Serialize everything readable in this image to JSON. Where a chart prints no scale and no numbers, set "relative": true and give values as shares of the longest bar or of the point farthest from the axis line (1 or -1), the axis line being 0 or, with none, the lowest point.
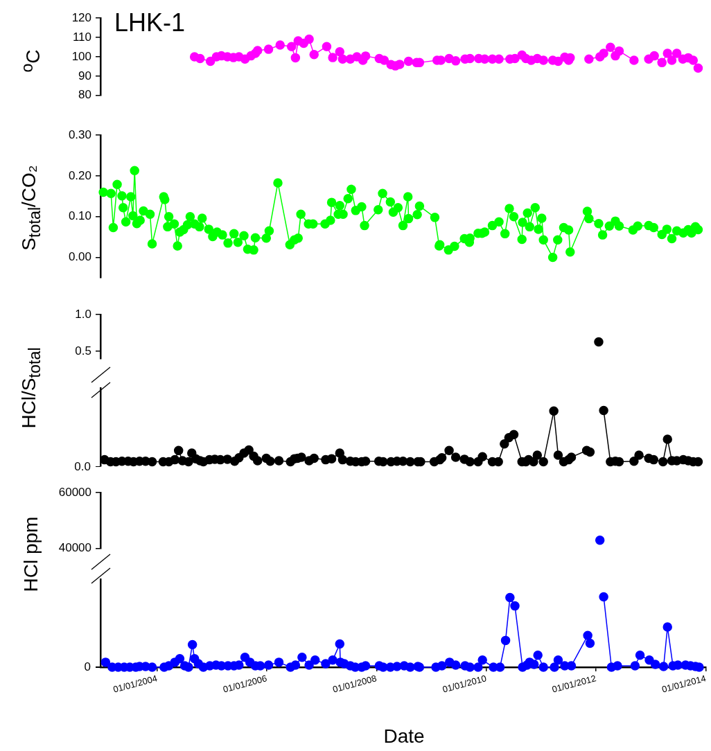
{
  "chart_data": [
    {
      "type": "line",
      "ylabel": "$^{o}$C",
      "annotations": [
        "LHK-1"
      ],
      "color": "#ff00ff",
      "marker": "circle",
      "line_style": "solid",
      "tick_labels": "y",
      "xlim": [
        "2002-12-20",
        "2014-01-01"
      ],
      "ylim": [
        80,
        120
      ],
      "yticks": [
        80,
        90,
        100,
        110,
        120
      ],
      "x": [
        "2004-09-06",
        "2004-10-13",
        "2004-12-21",
        "2005-01-30",
        "2005-03-04",
        "2005-04-13",
        "2005-05-23",
        "2005-06-29",
        "2005-08-08",
        "2005-09-17",
        "2005-10-16",
        "2005-10-31",
        "2006-01-12",
        "2006-03-30",
        "2006-06-14",
        "2006-07-10",
        "2006-07-28",
        "2006-09-03",
        "2006-10-09",
        "2006-11-11",
        "2007-02-03",
        "2007-03-15",
        "2007-05-01",
        "2007-05-20",
        "2007-07-10",
        "2007-08-23",
        "2007-10-02",
        "2007-10-20",
        "2008-01-19",
        "2008-02-21",
        "2008-04-06",
        "2008-05-05",
        "2008-06-03",
        "2008-08-01",
        "2008-09-24",
        "2008-10-13",
        "2009-02-07",
        "2009-03-04",
        "2009-04-28",
        "2009-06-11",
        "2009-08-12",
        "2009-09-14",
        "2009-11-11",
        "2009-12-21",
        "2010-02-10",
        "2010-03-26",
        "2010-06-07",
        "2010-07-10",
        "2010-08-26",
        "2010-09-21",
        "2010-10-27",
        "2010-12-06",
        "2011-01-16",
        "2011-03-19",
        "2011-04-24",
        "2011-06-07",
        "2011-07-03",
        "2011-07-13",
        "2011-09-14",
        "2011-11-15",
        "2012-01-27",
        "2012-02-21",
        "2012-04-06",
        "2012-05-09",
        "2012-06-03",
        "2012-09-10",
        "2012-10-20",
        "2012-12-17",
        "2013-01-23",
        "2013-03-15",
        "2013-04-21",
        "2013-05-20",
        "2013-06-22",
        "2013-08-01",
        "2013-09-06",
        "2013-10-09",
        "2013-11-11"
      ],
      "values": [
        100,
        99.1,
        97.7,
        100,
        100.5,
        100,
        99.6,
        100,
        98.8,
        100.5,
        101.8,
        103.2,
        103.9,
        106.1,
        105.3,
        99.5,
        108.2,
        107,
        109.1,
        101.2,
        105.3,
        99.6,
        102.6,
        98.8,
        98.8,
        100,
        98.2,
        100.4,
        99.1,
        98.2,
        96,
        95.3,
        96.1,
        97.7,
        97,
        97,
        98.2,
        98.2,
        99.1,
        97.9,
        98.8,
        99.1,
        99.1,
        98.8,
        98.8,
        98.8,
        98.8,
        99.1,
        100.9,
        99.1,
        98.2,
        99.1,
        98.2,
        98.2,
        97.7,
        99.8,
        98.2,
        99.5,
        null,
        98.8,
        100,
        101.8,
        104.9,
        100.5,
        103,
        98.2,
        null,
        98.8,
        100.5,
        97,
        101.8,
        98.2,
        101.8,
        98.8,
        99.5,
        98.2,
        94.2
      ]
    },
    {
      "type": "line",
      "ylabel": "S$_{total}$/CO₂",
      "color": "#00ff00",
      "marker": "circle",
      "line_style": "solid",
      "tick_labels": "y",
      "xlim": [
        "2002-12-20",
        "2014-01-01"
      ],
      "ylim": [
        -0.05,
        0.3
      ],
      "yticks": [
        {
          "value": 0,
          "label": "0.00"
        },
        {
          "value": 0.1,
          "label": "0.10"
        },
        {
          "value": 0.2,
          "label": "0.20"
        },
        {
          "value": 0.3,
          "label": "0.30"
        }
      ],
      "x": [
        "2003-01-08",
        "2003-02-28",
        "2003-03-15",
        "2003-04-10",
        "2003-05-12",
        "2003-05-20",
        "2003-06-07",
        "2003-07-10",
        "2003-07-24",
        "2003-08-04",
        "2003-08-19",
        "2003-09-10",
        "2003-10-02",
        "2003-11-15",
        "2003-11-29",
        "2004-02-14",
        "2004-02-21",
        "2004-03-11",
        "2004-03-19",
        "2004-04-24",
        "2004-05-16",
        "2004-05-31",
        "2004-06-25",
        "2004-07-21",
        "2004-08-08",
        "2004-09-06",
        "2004-10-09",
        "2004-10-27",
        "2004-12-10",
        "2005-01-05",
        "2005-02-03",
        "2005-03-11",
        "2005-04-17",
        "2005-05-27",
        "2005-06-22",
        "2005-08-01",
        "2005-08-26",
        "2005-10-05",
        "2005-10-16",
        "2005-12-28",
        "2006-01-16",
        "2006-03-15",
        "2006-06-03",
        "2006-07-03",
        "2006-07-28",
        "2006-08-15",
        "2006-10-05",
        "2006-11-04",
        "2007-01-23",
        "2007-02-28",
        "2007-03-08",
        "2007-04-21",
        "2007-05-01",
        "2007-05-23",
        "2007-06-25",
        "2007-07-17",
        "2007-08-15",
        "2007-09-24",
        "2007-10-13",
        "2008-01-12",
        "2008-02-10",
        "2008-04-02",
        "2008-04-21",
        "2008-05-23",
        "2008-06-25",
        "2008-07-28",
        "2008-08-01",
        "2008-09-28",
        "2008-10-13",
        "2009-01-23",
        "2009-02-21",
        "2009-02-25",
        "2009-04-24",
        "2009-06-03",
        "2009-08-08",
        "2009-09-10",
        "2009-09-14",
        "2009-11-07",
        "2009-12-03",
        "2009-12-21",
        "2010-02-10",
        "2010-03-26",
        "2010-05-05",
        "2010-06-03",
        "2010-07-03",
        "2010-08-26",
        "2010-08-30",
        "2010-10-02",
        "2010-10-16",
        "2010-11-22",
        "2010-12-14",
        "2011-01-05",
        "2011-01-16",
        "2011-03-19",
        "2011-04-21",
        "2011-05-31",
        "2011-07-03",
        "2011-07-13",
        "2011-11-04",
        "2011-11-15",
        "2012-01-19",
        "2012-02-14",
        "2012-03-30",
        "2012-05-09",
        "2012-06-03",
        "2012-09-03",
        "2012-10-05",
        "2012-12-17",
        "2013-01-19",
        "2013-03-15",
        "2013-04-17",
        "2013-05-20",
        "2013-06-22",
        "2013-08-04",
        "2013-09-06",
        "2013-09-28",
        "2013-10-24",
        "2013-11-11"
      ],
      "values": [
        0.16,
        0.157,
        0.073,
        0.179,
        0.151,
        0.122,
        0.087,
        0.149,
        0.102,
        0.213,
        0.083,
        0.091,
        0.114,
        0.106,
        0.033,
        0.149,
        0.142,
        0.075,
        0.1,
        0.082,
        0.028,
        0.062,
        0.068,
        0.08,
        0.1,
        0.082,
        0.075,
        0.096,
        0.069,
        0.051,
        0.062,
        0.055,
        0.035,
        0.058,
        0.037,
        0.053,
        0.02,
        0.018,
        0.048,
        0.047,
        0.065,
        0.183,
        0.031,
        0.043,
        0.047,
        0.106,
        0.082,
        0.082,
        0.082,
        0.091,
        0.135,
        0.106,
        0.127,
        0.106,
        0.144,
        0.167,
        0.115,
        0.124,
        0.078,
        0.117,
        0.157,
        0.136,
        0.111,
        0.122,
        0.078,
        0.149,
        0.095,
        0.105,
        0.126,
        0.098,
        0.028,
        0.031,
        0.018,
        0.027,
        0.046,
        0.037,
        0.047,
        0.059,
        0.059,
        0.062,
        0.078,
        0.087,
        0.058,
        0.12,
        0.1,
        0.044,
        0.086,
        0.109,
        0.075,
        0.122,
        0.069,
        0.096,
        0.043,
        0.0,
        0.043,
        0.073,
        0.067,
        0.013,
        0.113,
        0.095,
        0.083,
        0.055,
        0.077,
        0.089,
        0.077,
        0.067,
        0.077,
        0.078,
        0.073,
        0.056,
        0.069,
        0.046,
        0.065,
        0.06,
        0.068,
        0.06,
        0.075,
        0.068
      ]
    },
    {
      "type": "line",
      "ylabel": "HCl/S$_{total}$",
      "color": "#000000",
      "marker": "circle",
      "line_style": "solid",
      "tick_labels": "y",
      "xlim": [
        "2002-12-20",
        "2014-01-01"
      ],
      "ylim": [
        0.4,
        1.0
      ],
      "yticks": [
        {
          "value": 0.5,
          "label": "0.5"
        },
        {
          "value": 1.0,
          "label": "1.0"
        }
      ],
      "x": [
        "2012-01-19"
      ],
      "values": [
        0.63
      ]
    },
    {
      "type": "line",
      "relative": true,
      "annotations": [
        "0.0"
      ],
      "color": "#000000",
      "marker": "circle",
      "line_style": "solid",
      "tick_labels": false,
      "xlim": [
        "2002-12-20",
        "2014-01-01"
      ],
      "x": [
        "2003-01-16",
        "2003-02-25",
        "2003-04-02",
        "2003-05-12",
        "2003-06-22",
        "2003-07-28",
        "2003-09-06",
        "2003-10-16",
        "2003-11-29",
        "2004-02-10",
        "2004-03-19",
        "2004-04-28",
        "2004-05-23",
        "2004-06-18",
        "2004-07-28",
        "2004-08-19",
        "2004-09-14",
        "2004-10-13",
        "2004-11-04",
        "2004-12-14",
        "2005-01-19",
        "2005-02-25",
        "2005-04-13",
        "2005-05-31",
        "2005-06-29",
        "2005-08-01",
        "2005-09-03",
        "2005-10-05",
        "2005-10-31",
        "2005-12-28",
        "2006-01-23",
        "2006-03-22",
        "2006-06-07",
        "2006-07-03",
        "2006-07-24",
        "2006-08-19",
        "2006-10-09",
        "2006-11-11",
        "2007-01-27",
        "2007-03-08",
        "2007-05-01",
        "2007-05-20",
        "2007-07-10",
        "2007-08-15",
        "2007-09-24",
        "2007-10-20",
        "2008-01-16",
        "2008-02-14",
        "2008-04-06",
        "2008-05-16",
        "2008-06-25",
        "2008-08-12",
        "2008-10-02",
        "2008-10-20",
        "2009-01-19",
        "2009-02-25",
        "2009-03-11",
        "2009-04-28",
        "2009-06-11",
        "2009-08-08",
        "2009-09-14",
        "2009-11-07",
        "2009-12-06",
        "2010-02-10",
        "2010-03-22",
        "2010-05-01",
        "2010-05-31",
        "2010-07-03",
        "2010-08-26",
        "2010-09-21",
        "2010-10-09",
        "2010-11-11",
        "2010-12-06",
        "2011-01-16",
        "2011-03-26",
        "2011-04-24",
        "2011-05-31",
        "2011-07-03",
        "2011-07-21",
        "2011-10-31",
        "2011-11-22",
        "2012-01-19",
        "2012-02-21",
        "2012-04-06",
        "2012-05-09",
        "2012-06-03",
        "2012-09-10",
        "2012-10-13",
        "2012-12-17",
        "2013-01-19",
        "2013-03-22",
        "2013-04-21",
        "2013-05-20",
        "2013-06-22",
        "2013-08-04",
        "2013-09-06",
        "2013-10-09",
        "2013-11-11"
      ],
      "values": [
        0.04,
        0,
        0,
        0.01,
        0.01,
        0,
        0.01,
        0.01,
        0,
        0,
        0,
        0.04,
        0.22,
        0.02,
        0,
        0.17,
        0.06,
        0.02,
        0,
        0.04,
        0.05,
        0.04,
        0.05,
        0.01,
        0.08,
        0.17,
        0.23,
        0.11,
        0.02,
        0.07,
        0.01,
        0.02,
        0,
        0.06,
        0.07,
        0.09,
        0.02,
        0.07,
        0.04,
        0.06,
        0.17,
        0.04,
        0.01,
        0,
        0,
        0.01,
        0.01,
        0,
        0,
        0.01,
        0.01,
        0,
        0,
        0,
        0,
        0.04,
        0.08,
        0.22,
        0.09,
        0.05,
        0,
        0,
        0.1,
        0,
        0,
        0.35,
        0.47,
        0.53,
        0,
        0,
        0.04,
        0,
        0.13,
        0,
        0.99,
        0.13,
        0,
        0.04,
        0.09,
        0.22,
        0.19,
        null,
        1,
        0,
        0.01,
        0,
        0.01,
        0.13,
        0.07,
        0.04,
        0,
        0.44,
        0.02,
        0.02,
        0.04,
        0.02,
        0,
        0
      ]
    },
    {
      "type": "line",
      "ylabel": "HCl ppm",
      "color": "#0000ff",
      "marker": "circle",
      "line_style": "solid",
      "tick_labels": "y",
      "xlim": [
        "2002-12-20",
        "2014-01-01"
      ],
      "ylim": [
        40000,
        60000
      ],
      "yticks": [
        40000,
        60000
      ],
      "x": [
        "2012-01-27"
      ],
      "values": [
        43000
      ]
    },
    {
      "type": "line",
      "relative": true,
      "annotations": [
        "0"
      ],
      "xlabel": "Date",
      "color": "#0000ff",
      "marker": "circle",
      "line_style": "solid",
      "tick_labels": "x",
      "xlim": [
        "2002-12-20",
        "2014-01-01"
      ],
      "xticks": [
        {
          "value": "2004-01-01",
          "label": "01/01/2004"
        },
        {
          "value": "2006-01-01",
          "label": "01/01/2006"
        },
        {
          "value": "2008-01-01",
          "label": "01/01/2008"
        },
        {
          "value": "2010-01-01",
          "label": "01/01/2010"
        },
        {
          "value": "2012-01-01",
          "label": "01/01/2012"
        },
        {
          "value": "2014-01-01",
          "label": "01/01/2014"
        }
      ],
      "x": [
        "2003-01-23",
        "2003-03-08",
        "2003-04-17",
        "2003-05-27",
        "2003-07-03",
        "2003-08-12",
        "2003-09-06",
        "2003-10-16",
        "2003-11-29",
        "2004-02-17",
        "2004-03-19",
        "2004-04-28",
        "2004-05-31",
        "2004-07-03",
        "2004-07-28",
        "2004-08-23",
        "2004-09-06",
        "2004-10-02",
        "2004-11-04",
        "2004-12-17",
        "2005-01-27",
        "2005-03-04",
        "2005-04-17",
        "2005-05-27",
        "2005-06-29",
        "2005-08-08",
        "2005-09-10",
        "2005-10-16",
        "2005-11-18",
        "2006-01-12",
        "2006-03-22",
        "2006-06-07",
        "2006-07-10",
        "2006-08-23",
        "2006-10-09",
        "2006-11-18",
        "2007-01-27",
        "2007-03-15",
        "2007-05-01",
        "2007-05-05",
        "2007-05-31",
        "2007-07-10",
        "2007-08-12",
        "2007-09-24",
        "2007-10-20",
        "2008-01-19",
        "2008-02-14",
        "2008-04-02",
        "2008-05-16",
        "2008-07-03",
        "2008-08-12",
        "2008-10-02",
        "2008-10-13",
        "2009-01-30",
        "2009-03-11",
        "2009-05-01",
        "2009-06-11",
        "2009-08-12",
        "2009-09-14",
        "2009-11-07",
        "2009-12-06",
        "2010-02-17",
        "2010-04-02",
        "2010-05-09",
        "2010-06-07",
        "2010-07-10",
        "2010-08-30",
        "2010-09-28",
        "2010-10-16",
        "2010-11-15",
        "2010-12-10",
        "2011-01-16",
        "2011-03-30",
        "2011-04-24",
        "2011-06-07",
        "2011-07-21",
        "2011-11-07",
        "2011-11-22",
        "2012-01-27",
        "2012-02-21",
        "2012-04-13",
        "2012-05-23",
        "2012-09-17",
        "2012-10-20",
        "2012-12-21",
        "2013-01-30",
        "2013-03-26",
        "2013-04-21",
        "2013-05-27",
        "2013-06-29",
        "2013-08-19",
        "2013-09-21",
        "2013-10-24",
        "2013-11-18"
      ],
      "values": [
        0.07,
        0,
        0,
        0,
        0,
        0,
        0.01,
        0.01,
        0,
        0,
        0.02,
        0.07,
        0.12,
        0.02,
        0,
        0.32,
        0.12,
        0.05,
        0,
        0.02,
        0.03,
        0.02,
        0.02,
        0.02,
        0.03,
        0.14,
        0.07,
        0.02,
        0.02,
        0.03,
        0.07,
        0,
        0.03,
        0.14,
        0.03,
        0.1,
        0.05,
        0.1,
        0.33,
        0.07,
        0.05,
        0.02,
        0,
        0,
        0.02,
        0.02,
        0,
        0,
        0.01,
        0.02,
        0,
        0.01,
        0,
        0,
        0.02,
        0.07,
        0.03,
        0.02,
        0,
        0,
        0.1,
        0,
        0,
        0.38,
        0.99,
        0.87,
        0,
        0.03,
        0.07,
        0.04,
        0.17,
        0,
        0,
        0.1,
        0.02,
        0.02,
        0.45,
        0.34,
        null,
        1,
        0,
        0.02,
        0.02,
        0.17,
        0.1,
        0.04,
        0.01,
        0.57,
        0.02,
        0.03,
        0.03,
        0.02,
        0.01,
        0
      ]
    }
  ]
}
